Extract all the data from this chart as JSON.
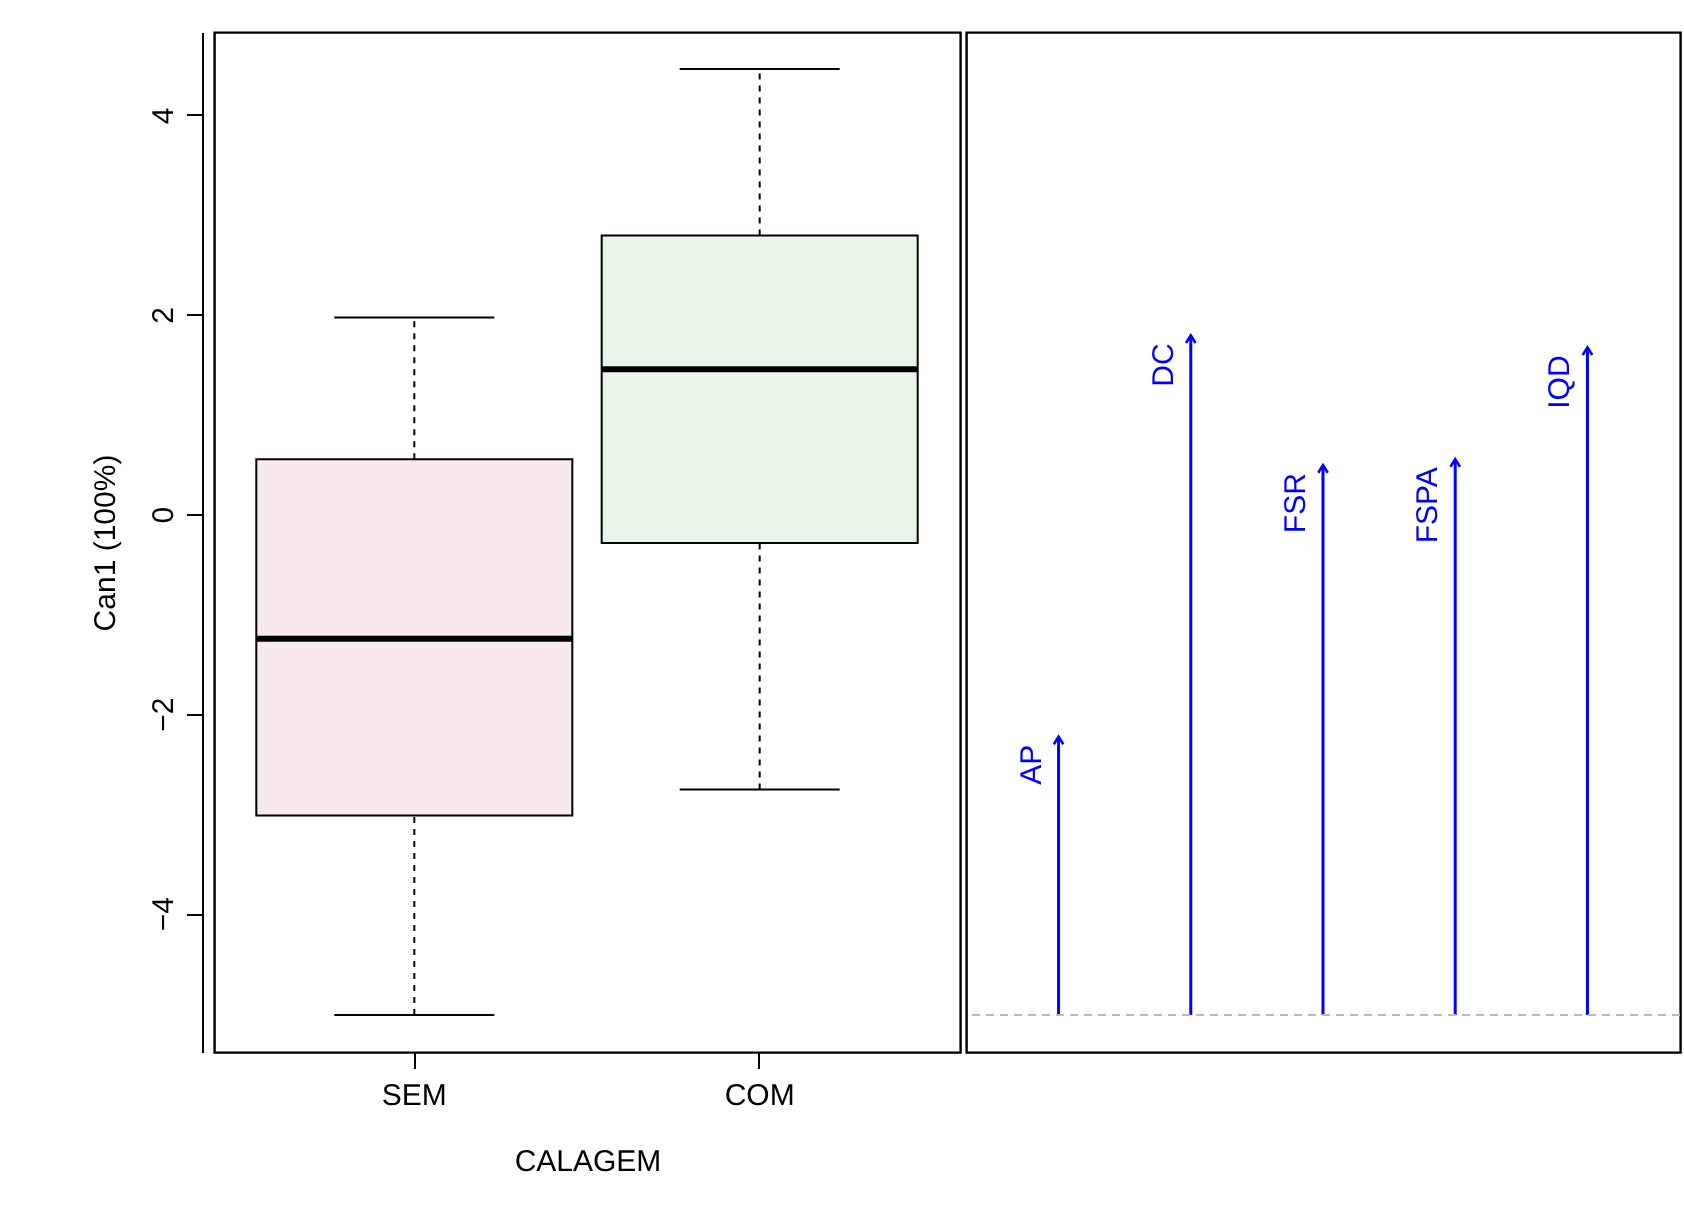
{
  "chart_data": [
    {
      "type": "box",
      "categories": [
        "SEM",
        "COM"
      ],
      "xlabel": "CALAGEM",
      "ylabel": "Can1 (100%)",
      "ylim": [
        -5.39,
        4.83
      ],
      "yticks": [
        -4,
        -2,
        0,
        2,
        4
      ],
      "colors": [
        "#f8e9ec",
        "#eaf5ea"
      ],
      "boxes": [
        {
          "low": -5.02,
          "q1": -3.02,
          "median": -1.25,
          "q3": 0.55,
          "high": 1.97
        },
        {
          "low": -2.76,
          "q1": -0.29,
          "median": 1.45,
          "q3": 2.79,
          "high": 4.46
        }
      ],
      "grid": false
    },
    {
      "type": "bar",
      "categories": [
        "AP",
        "DC",
        "FSR",
        "FSPA",
        "IQD"
      ],
      "base": [
        -5.02,
        -5.02,
        -5.02,
        -5.02,
        -5.02
      ],
      "values": [
        2.79,
        6.81,
        5.51,
        5.57,
        6.69
      ],
      "color": "#0000ff",
      "ylim": [
        -5.39,
        4.83
      ],
      "tick_labels": false,
      "grid": false,
      "ref_lines": [
        {
          "axis": "y",
          "value": -5.02,
          "color": "#bbbbbb",
          "line_style": "dashed"
        }
      ]
    }
  ]
}
